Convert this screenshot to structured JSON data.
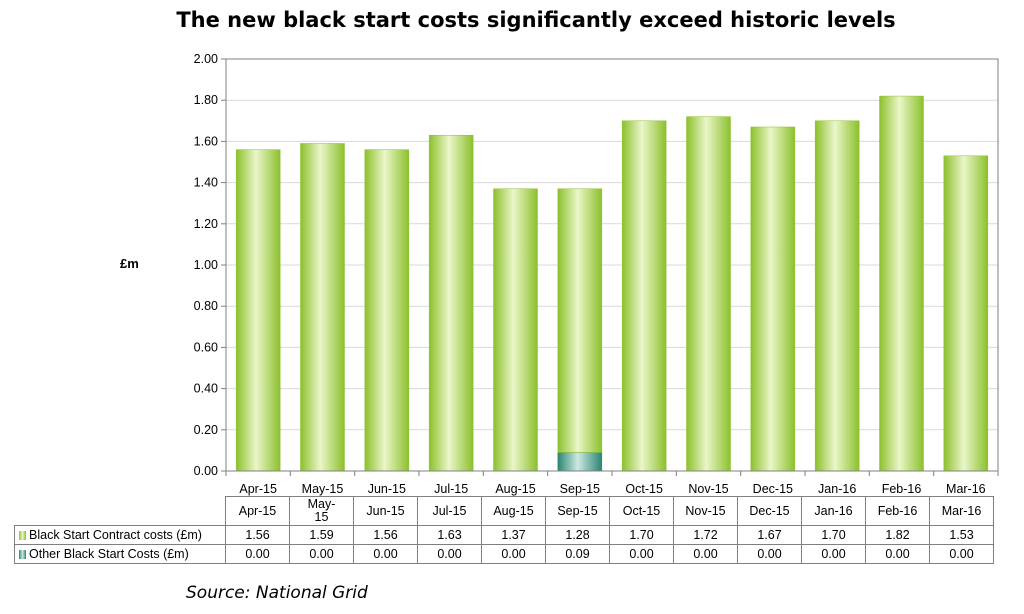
{
  "title": "The new black start costs significantly exceed historic levels",
  "source": "Source: National Grid",
  "colors": {
    "contract": "#9ccc3c",
    "contract_light": "#e9f5c8",
    "other": "#2e8b7a",
    "other_light": "#c7e6de",
    "grid": "#d9d9d9",
    "axis": "#808080"
  },
  "chart_data": {
    "type": "bar",
    "stacked": true,
    "title": "The new black start costs significantly exceed historic levels",
    "ylabel": "£m",
    "ylim": [
      0,
      2.0
    ],
    "yticks": [
      "0.00",
      "0.20",
      "0.40",
      "0.60",
      "0.80",
      "1.00",
      "1.20",
      "1.40",
      "1.60",
      "1.80",
      "2.00"
    ],
    "grid": true,
    "categories": [
      "Apr-15",
      "May-15",
      "Jun-15",
      "Jul-15",
      "Aug-15",
      "Sep-15",
      "Oct-15",
      "Nov-15",
      "Dec-15",
      "Jan-16",
      "Feb-16",
      "Mar-16"
    ],
    "table_headers": [
      "Apr-15",
      "May-\n15",
      "Jun-15",
      "Jul-15",
      "Aug-15",
      "Sep-15",
      "Oct-15",
      "Nov-15",
      "Dec-15",
      "Jan-16",
      "Feb-16",
      "Mar-16"
    ],
    "series": [
      {
        "name": "Black Start Contract costs (£m)",
        "values": [
          1.56,
          1.59,
          1.56,
          1.63,
          1.37,
          1.28,
          1.7,
          1.72,
          1.67,
          1.7,
          1.82,
          1.53
        ],
        "labels": [
          "1.56",
          "1.59",
          "1.56",
          "1.63",
          "1.37",
          "1.28",
          "1.70",
          "1.72",
          "1.67",
          "1.70",
          "1.82",
          "1.53"
        ]
      },
      {
        "name": "Other Black Start Costs (£m)",
        "values": [
          0.0,
          0.0,
          0.0,
          0.0,
          0.0,
          0.09,
          0.0,
          0.0,
          0.0,
          0.0,
          0.0,
          0.0
        ],
        "labels": [
          "0.00",
          "0.00",
          "0.00",
          "0.00",
          "0.00",
          "0.09",
          "0.00",
          "0.00",
          "0.00",
          "0.00",
          "0.00",
          "0.00"
        ]
      }
    ]
  }
}
